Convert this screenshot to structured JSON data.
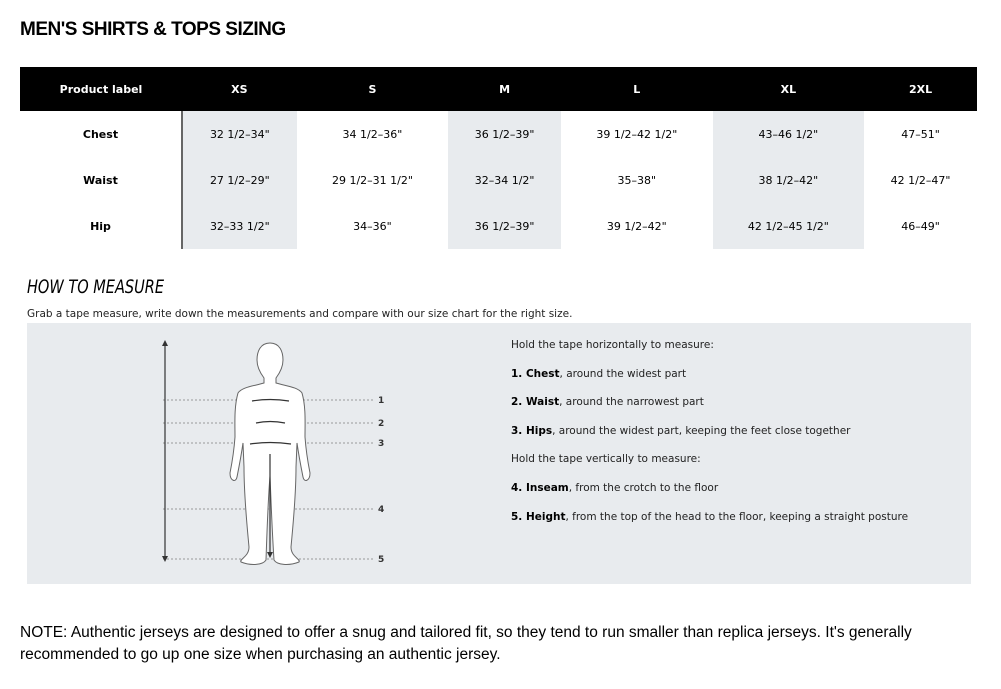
{
  "title": "MEN'S SHIRTS & TOPS SIZING",
  "table": {
    "headers": [
      "Product label",
      "XS",
      "S",
      "M",
      "L",
      "XL",
      "2XL"
    ],
    "rows": [
      {
        "label": "Chest",
        "values": [
          "32 1/2–34\"",
          "34 1/2–36\"",
          "36 1/2–39\"",
          "39 1/2–42 1/2\"",
          "43–46 1/2\"",
          "47–51\""
        ]
      },
      {
        "label": "Waist",
        "values": [
          "27 1/2–29\"",
          "29 1/2–31 1/2\"",
          "32–34 1/2\"",
          "35–38\"",
          "38 1/2–42\"",
          "42 1/2–47\""
        ]
      },
      {
        "label": "Hip",
        "values": [
          "32–33 1/2\"",
          "34–36\"",
          "36 1/2–39\"",
          "39 1/2–42\"",
          "42 1/2–45 1/2\"",
          "46–49\""
        ]
      }
    ]
  },
  "measure": {
    "heading": "HOW TO MEASURE",
    "subtitle": "Grab a tape measure, write down the measurements and compare with our size chart for the right size.",
    "markers": [
      "1",
      "2",
      "3",
      "4",
      "5"
    ],
    "horizontal_intro": "Hold the tape horizontally to measure:",
    "vertical_intro": "Hold the tape vertically to measure:",
    "steps": [
      {
        "name": "1. Chest",
        "desc": ", around the widest part"
      },
      {
        "name": "2. Waist",
        "desc": ", around the narrowest part"
      },
      {
        "name": "3. Hips",
        "desc": ", around the widest part, keeping the feet close together"
      },
      {
        "name": "4. Inseam",
        "desc": ", from the crotch to the floor"
      },
      {
        "name": "5. Height",
        "desc": ", from the top of the head to the floor, keeping a straight posture"
      }
    ]
  },
  "note": "NOTE: Authentic jerseys are designed to offer a snug and tailored fit, so they tend to run smaller than replica jerseys. It's generally recommended to go up one size when purchasing an authentic jersey."
}
